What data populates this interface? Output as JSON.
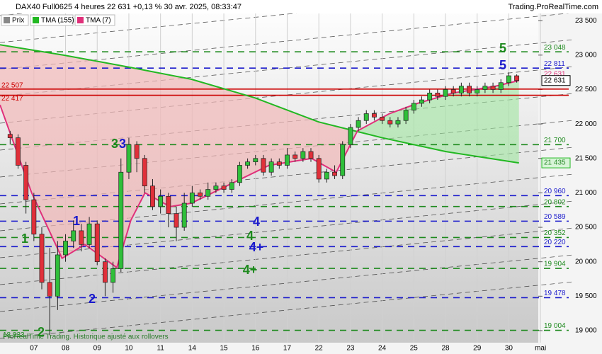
{
  "chart_data": {
    "type": "candlestick",
    "title": "DAX40 Full0625 4 heures 22 631 +0,13 % 30 avr. 2025, 08:33:47",
    "source": "Trading.ProRealTime.com",
    "footer": "ProRealTime Trading. Historique ajusté aux rollovers",
    "up_color": "#2fbf3a",
    "down_color": "#e0303a",
    "xlim": [
      -1.07,
      15.93
    ],
    "xticks": [
      {
        "value": 0,
        "label": "07"
      },
      {
        "value": 1,
        "label": "08"
      },
      {
        "value": 2,
        "label": "09"
      },
      {
        "value": 3,
        "label": "10"
      },
      {
        "value": 4,
        "label": "11"
      },
      {
        "value": 5,
        "label": "14"
      },
      {
        "value": 6,
        "label": "15"
      },
      {
        "value": 7,
        "label": "16"
      },
      {
        "value": 8,
        "label": "17"
      },
      {
        "value": 9,
        "label": "22"
      },
      {
        "value": 10,
        "label": "23"
      },
      {
        "value": 11,
        "label": "24"
      },
      {
        "value": 12,
        "label": "25"
      },
      {
        "value": 13,
        "label": "28"
      },
      {
        "value": 14,
        "label": "29"
      },
      {
        "value": 15,
        "label": "30"
      },
      {
        "value": 16,
        "label": "mai"
      }
    ],
    "ylim": [
      18825,
      23800
    ],
    "yticks": [
      {
        "value": 19000,
        "label": "19 000"
      },
      {
        "value": 19500,
        "label": "19 500"
      },
      {
        "value": 20000,
        "label": "20 000"
      },
      {
        "value": 20500,
        "label": "20 500"
      },
      {
        "value": 21000,
        "label": "21 000"
      },
      {
        "value": 21500,
        "label": "21 500"
      },
      {
        "value": 22000,
        "label": "22 000"
      },
      {
        "value": 22500,
        "label": "22 500"
      },
      {
        "value": 23000,
        "label": "23 000"
      },
      {
        "value": 23500,
        "label": "23 500"
      }
    ],
    "grid": true,
    "candles": {
      "name": "Prix",
      "x": [
        -0.75,
        -0.5,
        -0.25,
        0,
        0.25,
        0.5,
        0.75,
        1,
        1.25,
        1.5,
        1.75,
        2,
        2.25,
        2.5,
        2.75,
        3,
        3.25,
        3.5,
        3.75,
        4,
        4.25,
        4.5,
        4.75,
        5,
        5.25,
        5.5,
        5.75,
        6,
        6.25,
        6.5,
        6.75,
        7,
        7.25,
        7.5,
        7.75,
        8,
        8.25,
        8.5,
        8.75,
        9,
        9.25,
        9.5,
        9.75,
        10,
        10.25,
        10.5,
        10.75,
        11,
        11.25,
        11.5,
        11.75,
        12,
        12.25,
        12.5,
        12.75,
        13,
        13.25,
        13.5,
        13.75,
        14,
        14.25,
        14.5,
        14.75,
        15,
        15.25
      ],
      "open": [
        21850,
        21800,
        21400,
        20900,
        20400,
        19700,
        19500,
        20100,
        20300,
        20450,
        20250,
        20550,
        20000,
        19700,
        19900,
        21300,
        21700,
        21500,
        21100,
        20800,
        20950,
        20700,
        20500,
        20850,
        21000,
        20950,
        21050,
        21100,
        21050,
        21150,
        21400,
        21450,
        21500,
        21300,
        21450,
        21400,
        21550,
        21500,
        21600,
        21500,
        21200,
        21300,
        21250,
        21700,
        21950,
        22050,
        22150,
        22100,
        22050,
        22000,
        22050,
        22200,
        22300,
        22350,
        22450,
        22400,
        22500,
        22450,
        22550,
        22450,
        22500,
        22550,
        22500,
        22600,
        22700
      ],
      "high": [
        21900,
        21850,
        21450,
        21000,
        20500,
        20200,
        20300,
        20400,
        20600,
        20550,
        20650,
        20600,
        20050,
        20000,
        21500,
        21800,
        21750,
        21550,
        21200,
        21050,
        21000,
        20800,
        21000,
        21100,
        21050,
        21150,
        21150,
        21150,
        21200,
        21450,
        21500,
        21550,
        21550,
        21500,
        21500,
        21650,
        21600,
        21650,
        21650,
        21550,
        21350,
        21400,
        21750,
        22000,
        22100,
        22200,
        22200,
        22150,
        22100,
        22100,
        22250,
        22350,
        22400,
        22500,
        22500,
        22550,
        22550,
        22600,
        22600,
        22550,
        22600,
        22600,
        22650,
        22750,
        22720
      ],
      "low": [
        21700,
        21350,
        20700,
        20300,
        19600,
        18933,
        19300,
        20000,
        20200,
        20150,
        20200,
        19950,
        19500,
        19550,
        19850,
        21200,
        21300,
        21000,
        20750,
        20700,
        20500,
        20300,
        20450,
        20800,
        20900,
        20900,
        21000,
        21000,
        21000,
        21100,
        21350,
        21400,
        21250,
        21250,
        21350,
        21350,
        21450,
        21450,
        21450,
        21150,
        21150,
        21200,
        21200,
        21650,
        21900,
        22000,
        22050,
        22000,
        21950,
        21950,
        22000,
        22150,
        22250,
        22300,
        22350,
        22350,
        22400,
        22400,
        22400,
        22400,
        22450,
        22450,
        22450,
        22550,
        22600
      ],
      "close": [
        21800,
        21400,
        20900,
        20400,
        19700,
        19500,
        20100,
        20300,
        20450,
        20250,
        20550,
        20000,
        19700,
        19900,
        21300,
        21700,
        21500,
        21100,
        20800,
        20950,
        20700,
        20500,
        20850,
        21000,
        20950,
        21050,
        21100,
        21050,
        21150,
        21400,
        21450,
        21500,
        21300,
        21450,
        21400,
        21550,
        21500,
        21600,
        21500,
        21200,
        21300,
        21250,
        21700,
        21950,
        22050,
        22150,
        22100,
        22050,
        22000,
        22050,
        22200,
        22300,
        22350,
        22450,
        22400,
        22500,
        22450,
        22550,
        22450,
        22500,
        22550,
        22500,
        22600,
        22700,
        22631
      ]
    },
    "series": [
      {
        "name": "TMA (155)",
        "color": "#22b822",
        "x": [
          -1.07,
          0.94,
          2.95,
          4.97,
          6.98,
          8.99,
          11.0,
          13.0,
          15.32
        ],
        "values": [
          23150,
          23000,
          22830,
          22650,
          22380,
          22030,
          21800,
          21600,
          21435
        ]
      },
      {
        "name": "TMA (7)",
        "color": "#e0307a",
        "x": [
          -1.07,
          -0.07,
          0.89,
          1.61,
          2.62,
          3.06,
          3.51,
          4.3,
          4.97,
          6.31,
          7.43,
          8.77,
          9.55,
          10.22,
          11.23,
          12.12,
          13.24,
          14.59,
          15.32
        ],
        "values": [
          22278,
          21000,
          20050,
          20250,
          19915,
          20600,
          21000,
          20800,
          20850,
          21150,
          21400,
          21500,
          21300,
          21900,
          22150,
          22300,
          22450,
          22550,
          22631
        ]
      }
    ],
    "levels": [
      {
        "value": 23048,
        "label": "23 048",
        "color": "#1e8a1e"
      },
      {
        "value": 22811,
        "label": "22 811",
        "color": "#1a1acc"
      },
      {
        "value": 22507,
        "label": "22 507",
        "color": "#cc0000"
      },
      {
        "value": 22417,
        "label": "22 417",
        "color": "#cc0000"
      },
      {
        "value": 21700,
        "label": "21 700",
        "color": "#1e8a1e"
      },
      {
        "value": 20960,
        "label": "20 960",
        "color": "#1a1acc"
      },
      {
        "value": 20802,
        "label": "20 802",
        "color": "#1e8a1e"
      },
      {
        "value": 20589,
        "label": "20 589",
        "color": "#1a1acc"
      },
      {
        "value": 20352,
        "label": "20 352",
        "color": "#1e8a1e"
      },
      {
        "value": 20220,
        "label": "20 220",
        "color": "#1a1acc"
      },
      {
        "value": 19904,
        "label": "19 904",
        "color": "#1e8a1e"
      },
      {
        "value": 19478,
        "label": "19 478",
        "color": "#1a1acc"
      },
      {
        "value": 19004,
        "label": "19 004",
        "color": "#1e8a1e"
      },
      {
        "value": 18933,
        "label": "18 933",
        "color": "#1e8a1e"
      }
    ],
    "price_labels": [
      {
        "value": 22631,
        "label": "22 631",
        "color": "#e0307a"
      },
      {
        "value": 22631,
        "label": "22 631",
        "color": "#000000"
      },
      {
        "value": 21435,
        "label": "21 435",
        "color": "#22b822"
      }
    ],
    "annotations": [
      {
        "text": "1",
        "color": "#1e8a1e"
      },
      {
        "text": "2",
        "color": "#1e8a1e"
      },
      {
        "text": "3",
        "color": "#1e8a1e"
      },
      {
        "text": "3",
        "color": "#1a1acc"
      },
      {
        "text": "1",
        "color": "#1a1acc"
      },
      {
        "text": "2",
        "color": "#1a1acc"
      },
      {
        "text": "4",
        "color": "#1a1acc"
      },
      {
        "text": "4",
        "color": "#1e8a1e"
      },
      {
        "text": "4+",
        "color": "#1a1acc"
      },
      {
        "text": "4+",
        "color": "#1e8a1e"
      },
      {
        "text": "5",
        "color": "#1a1acc"
      },
      {
        "text": "5",
        "color": "#1e8a1e"
      }
    ]
  }
}
